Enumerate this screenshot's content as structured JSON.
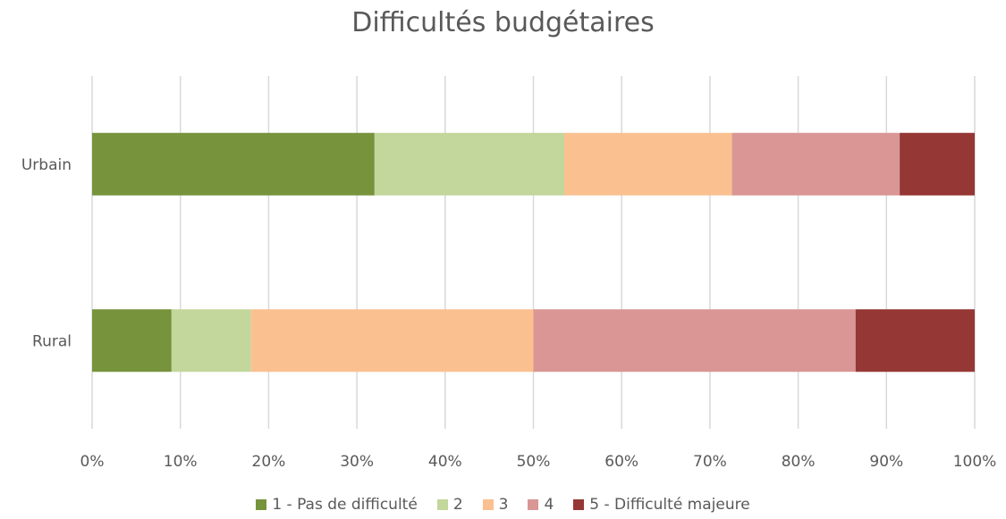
{
  "chart_data": {
    "type": "bar",
    "orientation": "horizontal",
    "stacked": "percent",
    "title": "Difficultés budgétaires",
    "categories": [
      "Urbain",
      "Rural"
    ],
    "series": [
      {
        "name": "1 - Pas de difficulté",
        "color": "#77933c",
        "values": [
          32,
          9
        ]
      },
      {
        "name": "2",
        "color": "#c3d69b",
        "values": [
          21.5,
          9
        ]
      },
      {
        "name": "3",
        "color": "#fac090",
        "values": [
          19,
          32
        ]
      },
      {
        "name": "4",
        "color": "#d99694",
        "values": [
          19,
          36.5
        ]
      },
      {
        "name": "5 - Difficulté majeure",
        "color": "#953735",
        "values": [
          8.5,
          13.5
        ]
      }
    ],
    "xlim": [
      0,
      100
    ],
    "x_ticks": [
      "0%",
      "10%",
      "20%",
      "30%",
      "40%",
      "50%",
      "60%",
      "70%",
      "80%",
      "90%",
      "100%"
    ],
    "grid": true,
    "legend_position": "bottom"
  }
}
